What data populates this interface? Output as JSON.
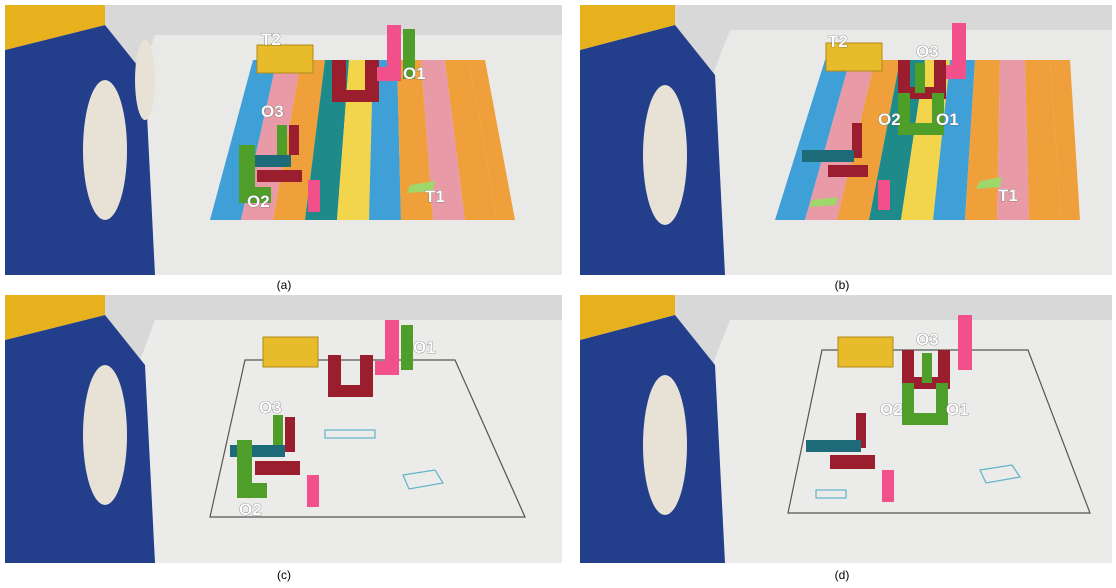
{
  "figure": {
    "panels": [
      {
        "id": "a",
        "caption": "(a)",
        "scene": "colored-stripe mat",
        "labels": [
          "T2",
          "O1",
          "O3",
          "O2",
          "T1"
        ]
      },
      {
        "id": "b",
        "caption": "(b)",
        "scene": "colored-stripe mat",
        "labels": [
          "T2",
          "O3",
          "O2",
          "O1",
          "T1"
        ]
      },
      {
        "id": "c",
        "caption": "(c)",
        "scene": "white workspace",
        "labels": [
          "O1",
          "O3",
          "O2"
        ]
      },
      {
        "id": "d",
        "caption": "(d)",
        "scene": "white workspace",
        "labels": [
          "O3",
          "O2",
          "O1"
        ]
      }
    ],
    "colors": {
      "machine_blue": "#233f8c",
      "machine_yellow": "#e6b11d",
      "table": "#e8e8e6",
      "stripe_blue": "#3fa0d8",
      "stripe_pink": "#e89aa6",
      "stripe_teal": "#1f8a8a",
      "stripe_yellow": "#f2d54a",
      "stripe_orange": "#f0a03a",
      "block_red": "#9a1e2e",
      "block_green": "#4f9e2a",
      "block_pink": "#f2508a",
      "block_teal": "#1d6b78",
      "box_yellow": "#e7bb2a"
    }
  }
}
